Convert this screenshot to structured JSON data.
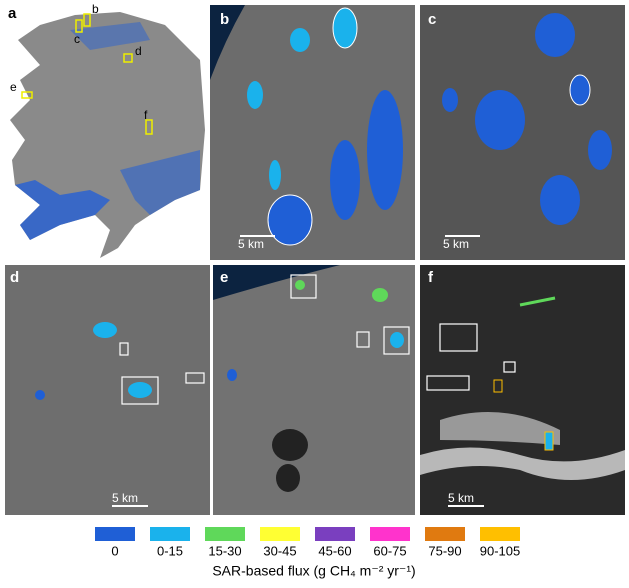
{
  "panels": [
    {
      "label": "a",
      "inset_labels": [
        "b",
        "c",
        "d",
        "e",
        "f"
      ]
    },
    {
      "label": "b",
      "scale_bar": "5 km"
    },
    {
      "label": "c",
      "scale_bar": "5 km"
    },
    {
      "label": "d",
      "scale_bar": "5 km"
    },
    {
      "label": "e",
      "scale_bar": "5 km"
    },
    {
      "label": "f",
      "scale_bar": "5 km"
    }
  ],
  "legend": {
    "title": "SAR-based flux (g CH₄ m⁻² yr⁻¹)",
    "items": [
      {
        "label": "0",
        "color": "#1f5fd6"
      },
      {
        "label": "0-15",
        "color": "#1ab2ec"
      },
      {
        "label": "15-30",
        "color": "#5fd85a"
      },
      {
        "label": "30-45",
        "color": "#ffff33"
      },
      {
        "label": "45-60",
        "color": "#7a3fbf"
      },
      {
        "label": "60-75",
        "color": "#ff33cc"
      },
      {
        "label": "75-90",
        "color": "#e07a10"
      },
      {
        "label": "90-105",
        "color": "#ffbf00"
      }
    ]
  }
}
